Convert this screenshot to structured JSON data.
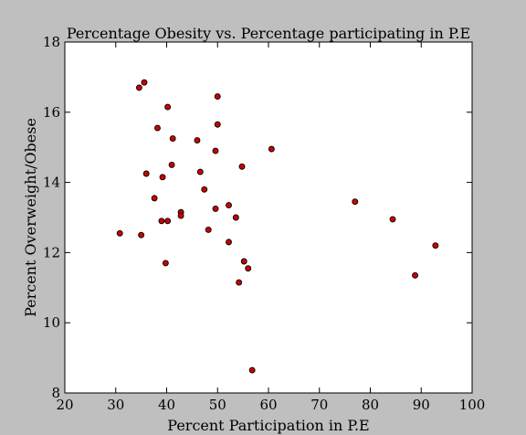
{
  "chart_data": {
    "type": "scatter",
    "title": "Percentage Obesity vs. Percentage participating in P.E",
    "xlabel": "Percent Participation in P.E",
    "ylabel": "Percent Overweight/Obese",
    "xlim": [
      20,
      100
    ],
    "ylim": [
      8,
      18
    ],
    "xticks": [
      "20",
      "30",
      "40",
      "50",
      "60",
      "70",
      "80",
      "90",
      "100"
    ],
    "yticks": [
      "8",
      "10",
      "12",
      "14",
      "16",
      "18"
    ],
    "grid": false,
    "legend": "none",
    "marker_color": "#cc0000",
    "marker_edge": "#000000",
    "background": "#bfbfbf",
    "series": [
      {
        "points": [
          [
            30.8,
            12.55
          ],
          [
            34.6,
            16.7
          ],
          [
            35.0,
            12.5
          ],
          [
            35.6,
            16.85
          ],
          [
            36.0,
            14.25
          ],
          [
            37.6,
            13.55
          ],
          [
            38.2,
            15.55
          ],
          [
            39.0,
            12.9
          ],
          [
            39.2,
            14.15
          ],
          [
            39.8,
            11.7
          ],
          [
            40.2,
            16.15
          ],
          [
            40.2,
            12.9
          ],
          [
            41.0,
            14.5
          ],
          [
            41.2,
            15.25
          ],
          [
            42.8,
            13.15
          ],
          [
            42.8,
            13.05
          ],
          [
            46.0,
            15.2
          ],
          [
            46.6,
            14.3
          ],
          [
            47.4,
            13.8
          ],
          [
            48.2,
            12.65
          ],
          [
            49.6,
            13.25
          ],
          [
            49.6,
            14.9
          ],
          [
            50.0,
            16.45
          ],
          [
            50.0,
            15.65
          ],
          [
            52.2,
            13.35
          ],
          [
            52.2,
            12.3
          ],
          [
            53.6,
            13.0
          ],
          [
            54.2,
            11.15
          ],
          [
            54.8,
            14.45
          ],
          [
            55.2,
            11.75
          ],
          [
            56.0,
            11.55
          ],
          [
            56.8,
            8.65
          ],
          [
            60.6,
            14.95
          ],
          [
            77.0,
            13.45
          ],
          [
            84.4,
            12.95
          ],
          [
            88.8,
            11.35
          ],
          [
            92.8,
            12.2
          ]
        ]
      }
    ]
  }
}
